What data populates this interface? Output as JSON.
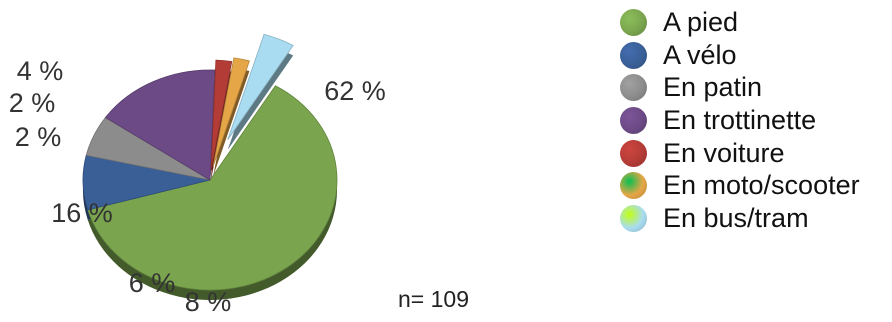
{
  "chart_data": {
    "type": "pie",
    "title": "",
    "slices": [
      {
        "name": "A pied",
        "value": 62,
        "label": "62 %",
        "color": "#7aa54e"
      },
      {
        "name": "A vélo",
        "value": 8,
        "label": "8 %",
        "color": "#3a5f97"
      },
      {
        "name": "En patin",
        "value": 6,
        "label": "6 %",
        "color": "#8c8c8c"
      },
      {
        "name": "En trottinette",
        "value": 16,
        "label": "16 %",
        "color": "#6c4a85"
      },
      {
        "name": "En voiture",
        "value": 2,
        "label": "2 %",
        "color": "#b33c37"
      },
      {
        "name": "En moto/scooter",
        "value": 2,
        "label": "2 %",
        "color": "#e5a647"
      },
      {
        "name": "En bus/tram",
        "value": 4,
        "label": "4 %",
        "color": "#a9dcf0"
      }
    ],
    "legend_position": "right",
    "note": "n= 109"
  }
}
